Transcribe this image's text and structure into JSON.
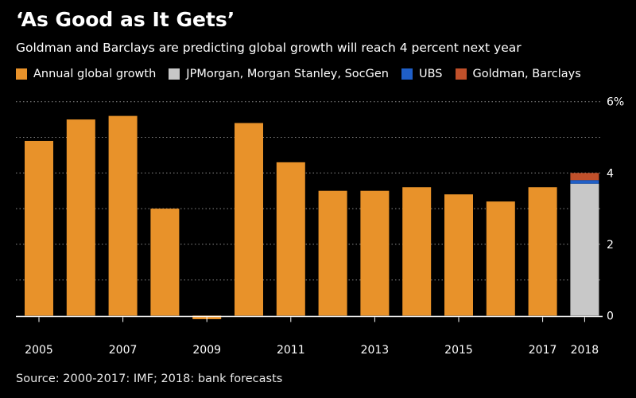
{
  "chart_data": {
    "type": "bar",
    "title": "‘As Good as It Gets’",
    "subtitle": "Goldman and Barclays are predicting global growth will reach 4 percent next year",
    "legend": [
      {
        "label": "Annual global growth",
        "color": "#e8922a"
      },
      {
        "label": "JPMorgan, Morgan Stanley, SocGen",
        "color": "#c8c8c8"
      },
      {
        "label": "UBS",
        "color": "#1f5fc8"
      },
      {
        "label": "Goldman, Barclays",
        "color": "#c0502a"
      }
    ],
    "categories": [
      "2005",
      "2006",
      "2007",
      "2008",
      "2009",
      "2010",
      "2011",
      "2012",
      "2013",
      "2014",
      "2015",
      "2016",
      "2017"
    ],
    "values": [
      4.9,
      5.5,
      5.6,
      3.0,
      -0.1,
      5.4,
      4.3,
      3.5,
      3.5,
      3.6,
      3.4,
      3.2,
      3.6
    ],
    "forecast": {
      "category": "2018",
      "segments": [
        {
          "name": "JPMorgan, Morgan Stanley, SocGen",
          "from": 0,
          "to": 3.7
        },
        {
          "name": "UBS",
          "from": 3.7,
          "to": 3.8
        },
        {
          "name": "Goldman, Barclays",
          "from": 3.8,
          "to": 4.0
        }
      ]
    },
    "x_tick_labels": [
      "2005",
      "2007",
      "2009",
      "2011",
      "2013",
      "2015",
      "2017",
      "2018"
    ],
    "y_ticks": [
      0,
      1,
      2,
      3,
      4,
      5,
      6
    ],
    "y_tick_labels": [
      {
        "value": 0,
        "label": "0"
      },
      {
        "value": 2,
        "label": "2"
      },
      {
        "value": 4,
        "label": "4"
      },
      {
        "value": 6,
        "label": "6%"
      }
    ],
    "ylim": [
      -0.2,
      6
    ],
    "xlabel": "",
    "ylabel": "",
    "grid": true,
    "source": "Source: 2000-2017: IMF; 2018: bank forecasts"
  }
}
